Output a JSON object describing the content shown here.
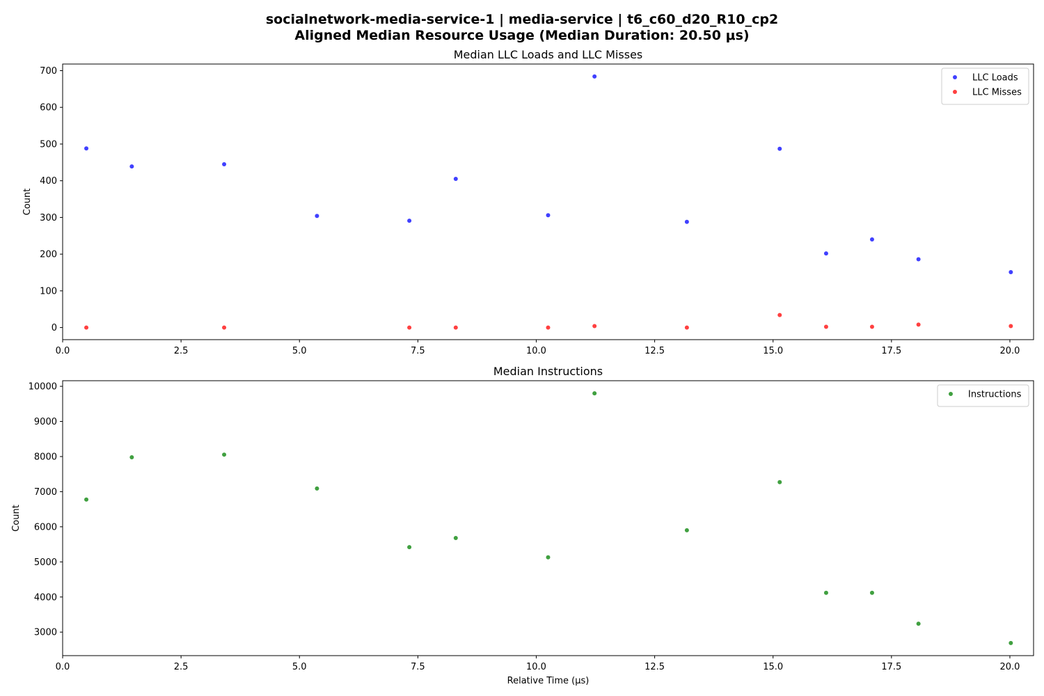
{
  "figure": {
    "suptitle_line1": "socialnetwork-media-service-1 | media-service | t6_c60_d20_R10_cp2",
    "suptitle_line2": "Aligned Median Resource Usage (Median Duration: 20.50 μs)"
  },
  "chart_data": [
    {
      "type": "scatter",
      "title": "Median LLC Loads and LLC Misses",
      "xlabel": "",
      "ylabel": "Count",
      "xlim": [
        0,
        20.5
      ],
      "ylim": [
        -33,
        718
      ],
      "xticks": [
        0.0,
        2.5,
        5.0,
        7.5,
        10.0,
        12.5,
        15.0,
        17.5,
        20.0
      ],
      "xtick_labels": [
        "0.0",
        "2.5",
        "5.0",
        "7.5",
        "10.0",
        "12.5",
        "15.0",
        "17.5",
        "20.0"
      ],
      "yticks": [
        0,
        100,
        200,
        300,
        400,
        500,
        600,
        700
      ],
      "ytick_labels": [
        "0",
        "100",
        "200",
        "300",
        "400",
        "500",
        "600",
        "700"
      ],
      "grid": false,
      "legend_position": "top-right",
      "series": [
        {
          "name": "LLC Loads",
          "color": "#0000ff",
          "x": [
            0.5,
            1.46,
            3.41,
            5.37,
            7.32,
            8.3,
            10.25,
            11.23,
            13.18,
            15.14,
            16.12,
            17.09,
            18.07,
            20.02
          ],
          "y": [
            488,
            439,
            445,
            304,
            291,
            405,
            306,
            684,
            288,
            487,
            202,
            240,
            186,
            151
          ]
        },
        {
          "name": "LLC Misses",
          "color": "#ff0000",
          "x": [
            0.5,
            3.41,
            7.32,
            8.3,
            10.25,
            11.23,
            13.18,
            15.14,
            16.12,
            17.09,
            18.07,
            20.02
          ],
          "y": [
            0,
            0,
            0,
            0,
            0,
            4,
            0,
            34,
            2,
            2,
            8,
            4
          ]
        }
      ]
    },
    {
      "type": "scatter",
      "title": "Median Instructions",
      "xlabel": "Relative Time (μs)",
      "ylabel": "Count",
      "xlim": [
        0,
        20.5
      ],
      "ylim": [
        2330,
        10160
      ],
      "xticks": [
        0.0,
        2.5,
        5.0,
        7.5,
        10.0,
        12.5,
        15.0,
        17.5,
        20.0
      ],
      "xtick_labels": [
        "0.0",
        "2.5",
        "5.0",
        "7.5",
        "10.0",
        "12.5",
        "15.0",
        "17.5",
        "20.0"
      ],
      "yticks": [
        3000,
        4000,
        5000,
        6000,
        7000,
        8000,
        9000,
        10000
      ],
      "ytick_labels": [
        "3000",
        "4000",
        "5000",
        "6000",
        "7000",
        "8000",
        "9000",
        "10000"
      ],
      "grid": false,
      "legend_position": "top-right",
      "series": [
        {
          "name": "Instructions",
          "color": "#008000",
          "x": [
            0.5,
            1.46,
            3.41,
            5.37,
            7.32,
            8.3,
            10.25,
            11.23,
            13.18,
            15.14,
            16.12,
            17.09,
            18.07,
            20.02
          ],
          "y": [
            6775,
            7980,
            8055,
            7090,
            5420,
            5680,
            5130,
            9800,
            5900,
            7270,
            4120,
            4120,
            3240,
            2690
          ]
        }
      ]
    }
  ]
}
